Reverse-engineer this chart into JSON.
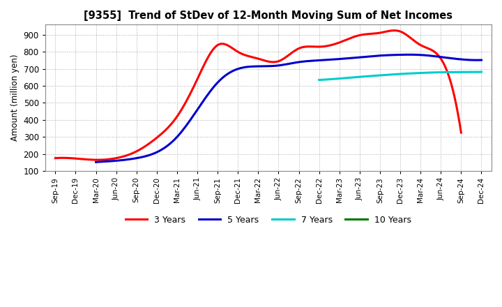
{
  "title": "[9355]  Trend of StDev of 12-Month Moving Sum of Net Incomes",
  "ylabel": "Amount (million yen)",
  "background_color": "#ffffff",
  "grid_color": "#aaaaaa",
  "x_labels": [
    "Sep-19",
    "Dec-19",
    "Mar-20",
    "Jun-20",
    "Sep-20",
    "Dec-20",
    "Mar-21",
    "Jun-21",
    "Sep-21",
    "Dec-21",
    "Mar-22",
    "Jun-22",
    "Sep-22",
    "Dec-22",
    "Mar-23",
    "Jun-23",
    "Sep-23",
    "Dec-23",
    "Mar-24",
    "Jun-24",
    "Sep-24",
    "Dec-24"
  ],
  "ylim": [
    100,
    960
  ],
  "yticks": [
    100,
    200,
    300,
    400,
    500,
    600,
    700,
    800,
    900
  ],
  "series": {
    "3 Years": {
      "color": "#ff0000",
      "data": [
        0,
        1,
        2,
        3,
        4,
        5,
        6,
        7,
        8,
        9,
        10,
        11,
        12,
        13,
        14,
        15,
        16,
        17,
        18,
        19,
        20,
        21
      ],
      "values": [
        175,
        173,
        165,
        175,
        215,
        295,
        420,
        640,
        840,
        800,
        760,
        745,
        820,
        830,
        855,
        898,
        912,
        920,
        840,
        760,
        325,
        null
      ]
    },
    "5 Years": {
      "color": "#0000cc",
      "data": [
        0,
        1,
        2,
        3,
        4,
        5,
        6,
        7,
        8,
        9,
        10,
        11,
        12,
        13,
        14,
        15,
        16,
        17,
        18,
        19,
        20,
        21
      ],
      "values": [
        null,
        null,
        152,
        160,
        175,
        210,
        300,
        460,
        620,
        700,
        715,
        720,
        740,
        750,
        758,
        768,
        778,
        783,
        782,
        770,
        756,
        752
      ]
    },
    "7 Years": {
      "color": "#00cccc",
      "data": [
        0,
        1,
        2,
        3,
        4,
        5,
        6,
        7,
        8,
        9,
        10,
        11,
        12,
        13,
        14,
        15,
        16,
        17,
        18,
        19,
        20,
        21
      ],
      "values": [
        null,
        null,
        null,
        null,
        null,
        null,
        null,
        null,
        null,
        null,
        null,
        null,
        null,
        635,
        643,
        653,
        662,
        670,
        676,
        680,
        681,
        682
      ]
    },
    "10 Years": {
      "color": "#007700",
      "data": [],
      "values": []
    }
  },
  "legend": {
    "entries": [
      "3 Years",
      "5 Years",
      "7 Years",
      "10 Years"
    ],
    "colors": [
      "#ff0000",
      "#0000cc",
      "#00cccc",
      "#007700"
    ]
  }
}
